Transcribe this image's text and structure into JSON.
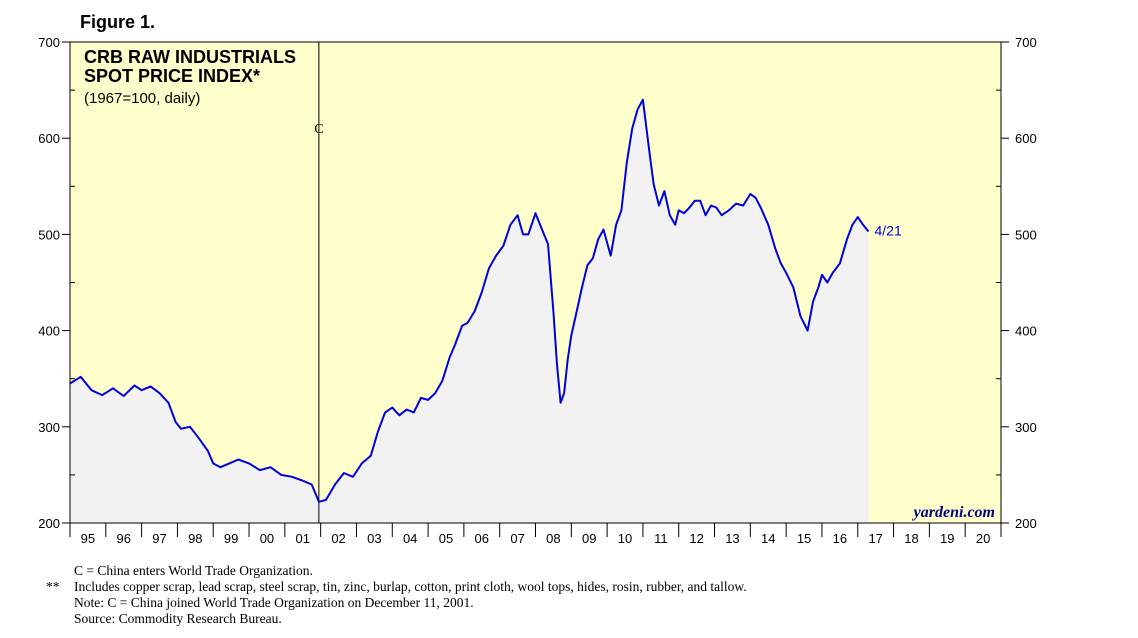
{
  "figure_label": "Figure 1.",
  "colors": {
    "plot_background": "#ffffcc",
    "area_fill": "#f2f2f2",
    "line": "#0000dd",
    "frame": "#000000",
    "watermark": "#000080"
  },
  "chart_data": {
    "type": "line",
    "title": "CRB RAW INDUSTRIALS",
    "subtitle": "SPOT PRICE INDEX*",
    "units": "(1967=100, daily)",
    "series_name": "CRB Raw Industrials Spot Price Index",
    "ylim": [
      200,
      700
    ],
    "y_ticks": [
      "200",
      "300",
      "400",
      "500",
      "600",
      "700"
    ],
    "xlim": [
      1995,
      2021
    ],
    "x_tick_labels": [
      "95",
      "96",
      "97",
      "98",
      "99",
      "00",
      "01",
      "02",
      "03",
      "04",
      "05",
      "06",
      "07",
      "08",
      "09",
      "10",
      "11",
      "12",
      "13",
      "14",
      "15",
      "16",
      "17",
      "18",
      "19",
      "20"
    ],
    "event_marker": {
      "label": "C",
      "x": 2001.95
    },
    "last_point_label": "4/21",
    "watermark": "yardeni.com",
    "x": [
      1995.0,
      1995.3,
      1995.6,
      1995.9,
      1996.2,
      1996.5,
      1996.8,
      1997.0,
      1997.25,
      1997.5,
      1997.75,
      1997.95,
      1998.1,
      1998.35,
      1998.6,
      1998.85,
      1999.0,
      1999.2,
      1999.45,
      1999.7,
      2000.0,
      2000.3,
      2000.6,
      2000.9,
      2001.2,
      2001.5,
      2001.75,
      2001.95,
      2002.15,
      2002.4,
      2002.65,
      2002.9,
      2003.15,
      2003.4,
      2003.6,
      2003.8,
      2004.0,
      2004.2,
      2004.4,
      2004.6,
      2004.8,
      2005.0,
      2005.2,
      2005.4,
      2005.6,
      2005.75,
      2005.95,
      2006.1,
      2006.3,
      2006.5,
      2006.7,
      2006.9,
      2007.1,
      2007.3,
      2007.5,
      2007.65,
      2007.8,
      2008.0,
      2008.15,
      2008.35,
      2008.5,
      2008.6,
      2008.7,
      2008.8,
      2008.9,
      2009.0,
      2009.15,
      2009.3,
      2009.45,
      2009.6,
      2009.75,
      2009.9,
      2010.1,
      2010.25,
      2010.4,
      2010.55,
      2010.7,
      2010.85,
      2011.0,
      2011.1,
      2011.2,
      2011.3,
      2011.45,
      2011.6,
      2011.75,
      2011.9,
      2012.0,
      2012.15,
      2012.3,
      2012.45,
      2012.6,
      2012.75,
      2012.9,
      2013.05,
      2013.2,
      2013.4,
      2013.6,
      2013.8,
      2014.0,
      2014.15,
      2014.3,
      2014.5,
      2014.7,
      2014.85,
      2015.0,
      2015.2,
      2015.4,
      2015.6,
      2015.75,
      2015.9,
      2016.0,
      2016.15,
      2016.3,
      2016.5,
      2016.7,
      2016.85,
      2017.0,
      2017.15,
      2017.3
    ],
    "values": [
      345,
      352,
      338,
      333,
      340,
      332,
      343,
      338,
      342,
      335,
      325,
      305,
      298,
      300,
      288,
      275,
      262,
      258,
      262,
      266,
      262,
      255,
      258,
      250,
      248,
      244,
      240,
      222,
      224,
      240,
      252,
      248,
      262,
      270,
      295,
      315,
      320,
      312,
      318,
      315,
      330,
      328,
      335,
      348,
      372,
      385,
      405,
      408,
      420,
      440,
      465,
      478,
      488,
      510,
      520,
      500,
      500,
      522,
      508,
      490,
      420,
      365,
      325,
      335,
      370,
      395,
      420,
      445,
      468,
      475,
      495,
      505,
      478,
      510,
      525,
      575,
      610,
      630,
      640,
      610,
      580,
      552,
      530,
      545,
      520,
      510,
      525,
      522,
      528,
      535,
      535,
      520,
      530,
      528,
      520,
      525,
      532,
      530,
      542,
      538,
      527,
      510,
      485,
      470,
      460,
      445,
      415,
      400,
      430,
      445,
      458,
      450,
      460,
      470,
      495,
      510,
      518,
      510,
      503
    ]
  },
  "notes": {
    "line1": {
      "marker": "",
      "text": "C = China enters World Trade Organization."
    },
    "line2": {
      "marker": "**",
      "text": "Includes copper scrap, lead scrap, steel scrap, tin, zinc, burlap, cotton, print cloth, wool tops, hides, rosin, rubber, and tallow."
    },
    "line3": {
      "marker": "",
      "text": "Note: C = China joined World Trade Organization on December 11, 2001."
    },
    "line4": {
      "marker": "",
      "text": "Source: Commodity Research Bureau."
    }
  }
}
